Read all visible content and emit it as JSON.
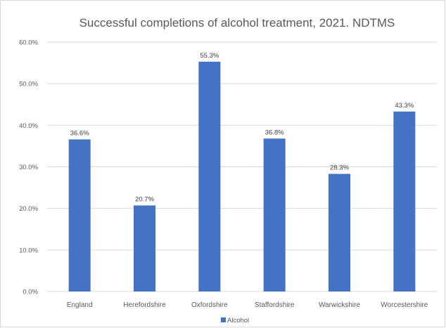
{
  "chart_data": {
    "type": "bar",
    "title": "Successful completions of alcohol treatment, 2021. NDTMS",
    "categories": [
      "England",
      "Herefordshire",
      "Oxfordshire",
      "Staffordshire",
      "Warwickshire",
      "Worcestershire"
    ],
    "series": [
      {
        "name": "Alcohol",
        "values": [
          36.6,
          20.7,
          55.3,
          36.8,
          28.3,
          43.3
        ],
        "data_labels": [
          "36.6%",
          "20.7%",
          "55.3%",
          "36.8%",
          "28.3%",
          "43.3%"
        ],
        "color": "#4472c4"
      }
    ],
    "ylim": [
      0,
      60
    ],
    "yticks": [
      0,
      10,
      20,
      30,
      40,
      50,
      60
    ],
    "ytick_labels": [
      "0.0%",
      "10.0%",
      "20.0%",
      "30.0%",
      "40.0%",
      "50.0%",
      "60.0%"
    ],
    "grid": true,
    "legend_position": "bottom",
    "gridline_color": "#d9d9d9"
  }
}
